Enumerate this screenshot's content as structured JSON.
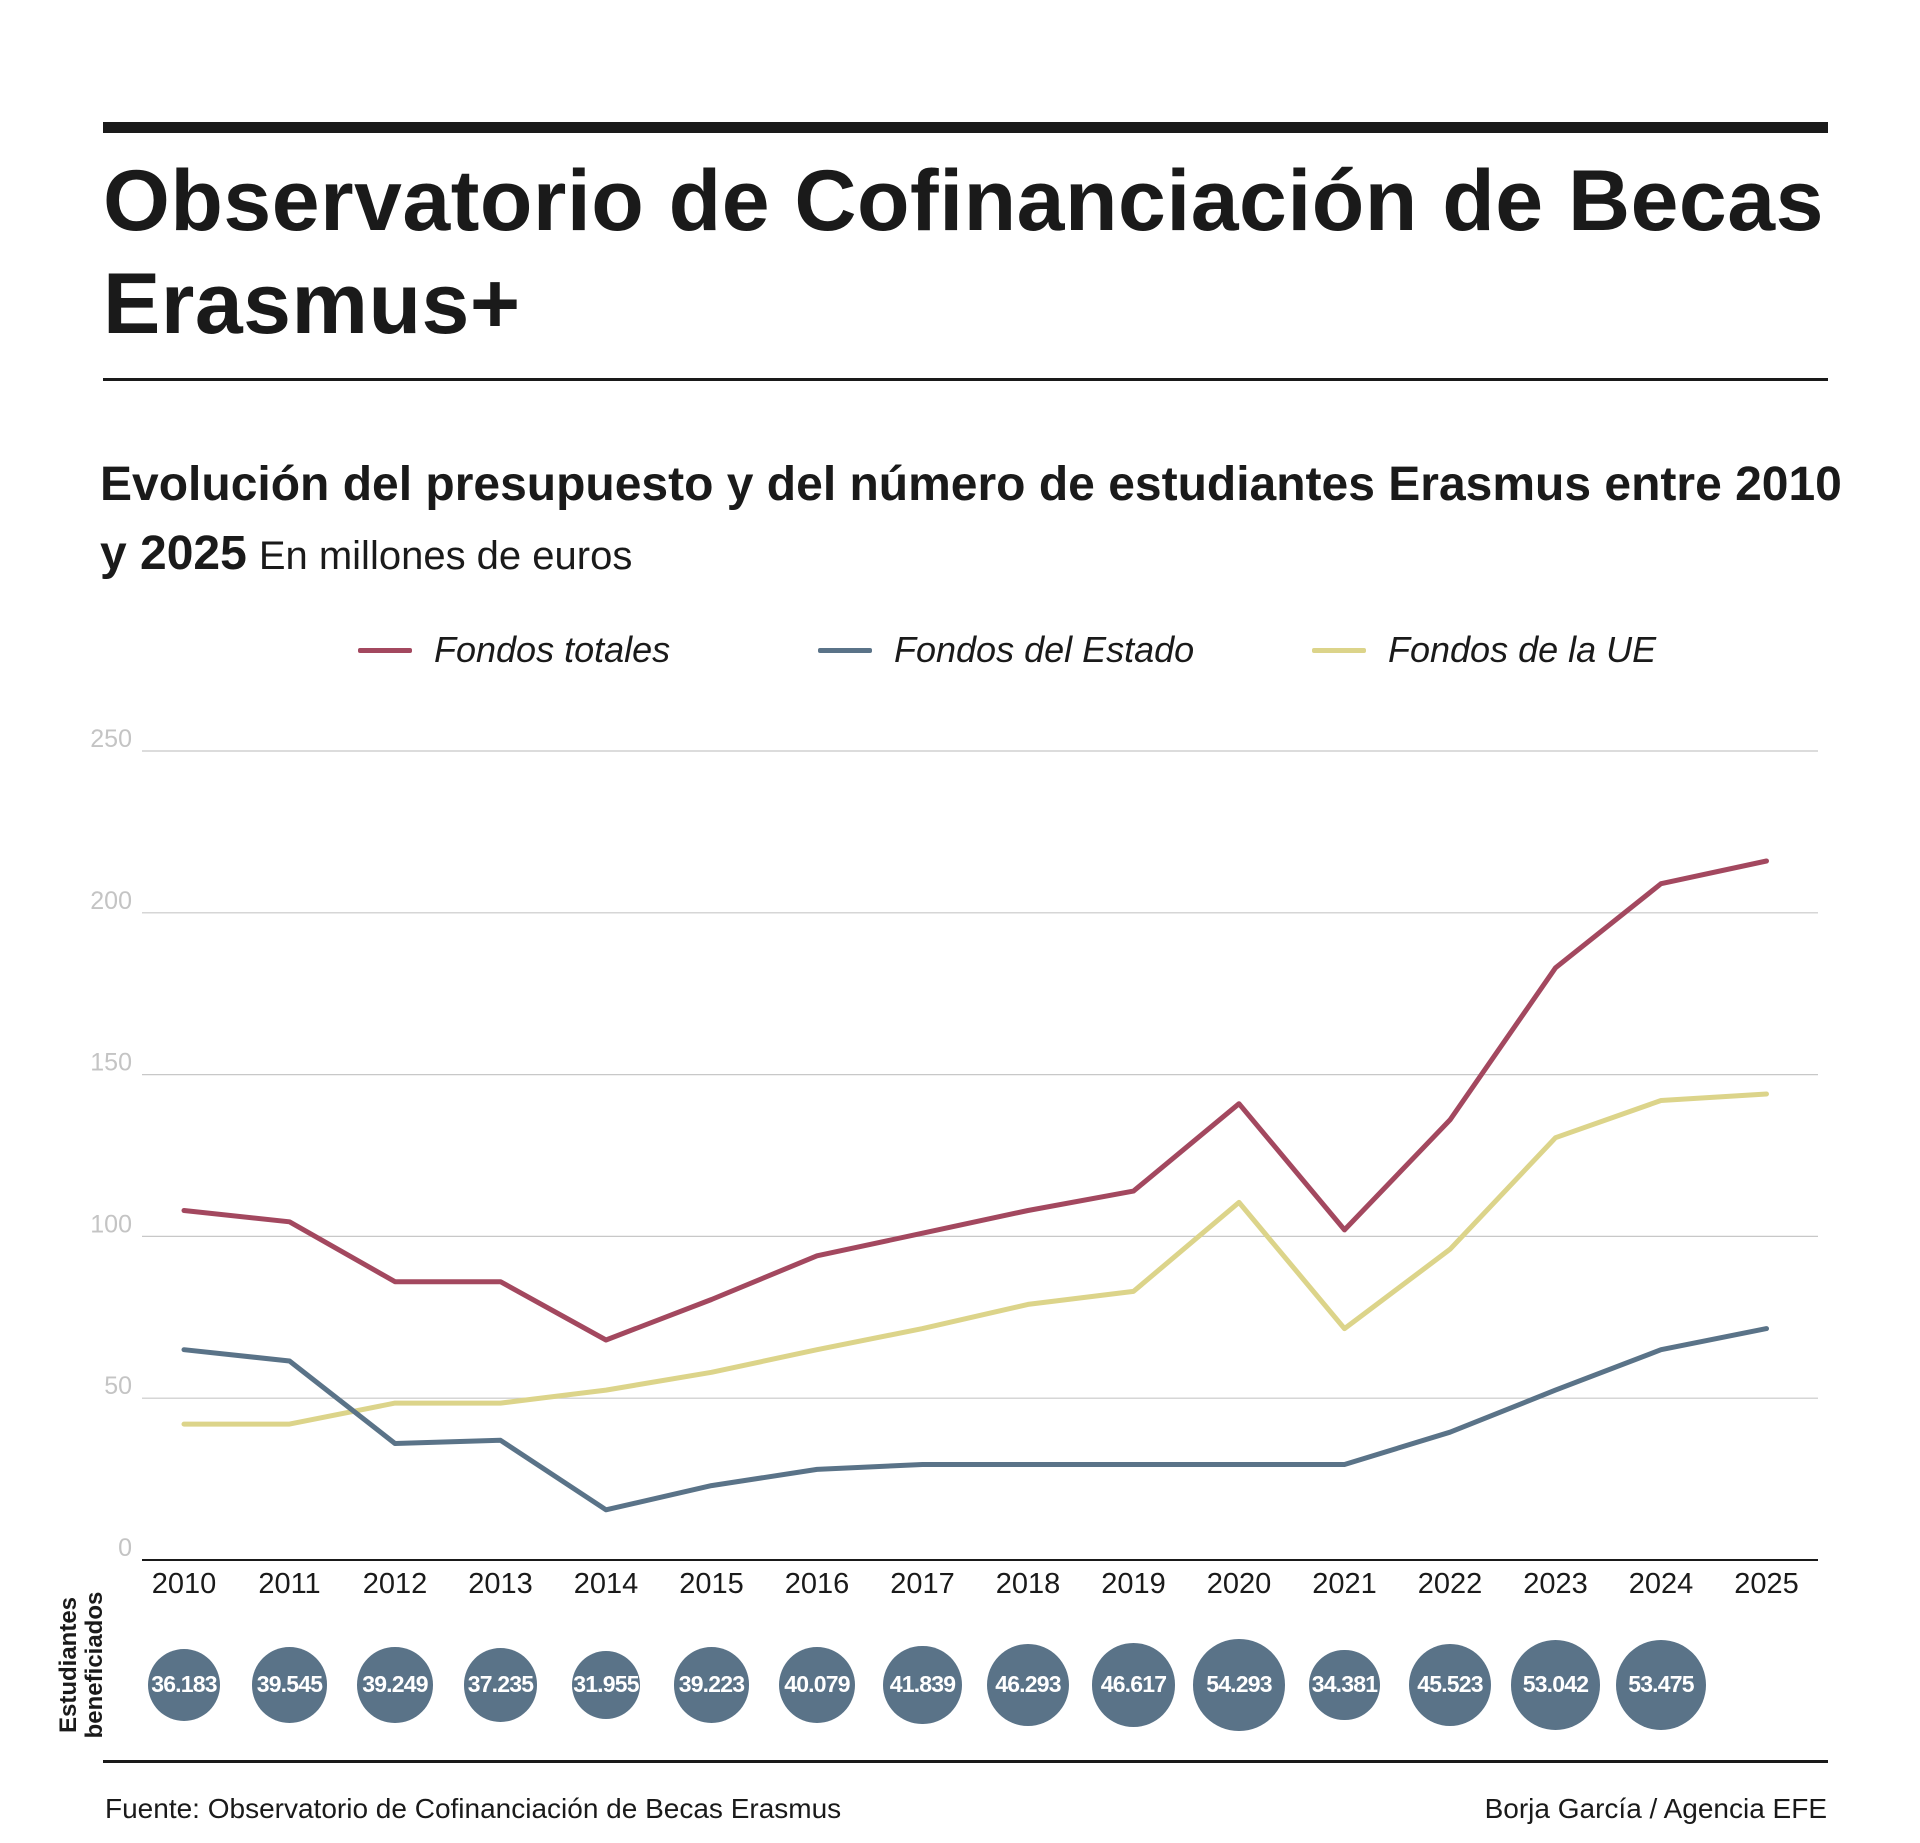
{
  "header": {
    "title": "Observatorio de Cofinanciación de Becas Erasmus+",
    "subtitle": "Evolución del presupuesto y del número de estudiantes Erasmus entre 2010 y 2025",
    "unit": "En millones de euros"
  },
  "legend": [
    {
      "label": "Fondos totales",
      "color": "#a3485f"
    },
    {
      "label": "Fondos del Estado",
      "color": "#5a7388"
    },
    {
      "label": "Fondos de la UE",
      "color": "#dcd48a"
    }
  ],
  "chart_data": {
    "type": "line",
    "title": "Evolución del presupuesto y del número de estudiantes Erasmus entre 2010 y 2025",
    "ylabel": "En millones de euros",
    "xlabel": "",
    "ylim": [
      0,
      250
    ],
    "yticks": [
      0,
      50,
      100,
      150,
      200,
      250
    ],
    "grid": true,
    "legend_position": "top",
    "categories": [
      "2010",
      "2011",
      "2012",
      "2013",
      "2014",
      "2015",
      "2016",
      "2017",
      "2018",
      "2019",
      "2020",
      "2021",
      "2022",
      "2023",
      "2024",
      "2025"
    ],
    "series": [
      {
        "name": "Fondos totales",
        "color": "#a3485f",
        "values": [
          108,
          104.5,
          86,
          86,
          68,
          80.5,
          94,
          101,
          108,
          114,
          141,
          102,
          136,
          183,
          209,
          216
        ]
      },
      {
        "name": "Fondos del Estado",
        "color": "#5a7388",
        "values": [
          65,
          61.5,
          36,
          37,
          15.5,
          23,
          28,
          29.5,
          29.5,
          29.5,
          29.5,
          29.5,
          39.5,
          52.5,
          65,
          71.5
        ]
      },
      {
        "name": "Fondos de la UE",
        "color": "#dcd48a",
        "values": [
          42,
          42,
          48.5,
          48.5,
          52.5,
          58,
          65,
          71.5,
          79,
          83,
          110.5,
          71.5,
          96,
          130.5,
          142,
          144
        ]
      }
    ]
  },
  "students": {
    "label_line1": "Estudiantes",
    "label_line2": "beneficiados",
    "years": [
      "2010",
      "2011",
      "2012",
      "2013",
      "2014",
      "2015",
      "2016",
      "2017",
      "2018",
      "2019",
      "2020",
      "2021",
      "2022",
      "2023",
      "2024"
    ],
    "values": [
      36183,
      39545,
      39249,
      37235,
      31955,
      39223,
      40079,
      41839,
      46293,
      46617,
      54293,
      34381,
      45523,
      53042,
      53475
    ],
    "labels": [
      "36.183",
      "39.545",
      "39.249",
      "37.235",
      "31.955",
      "39.223",
      "40.079",
      "41.839",
      "46.293",
      "46.617",
      "54.293",
      "34.381",
      "45.523",
      "53.042",
      "53.475"
    ],
    "color": "#5a7388"
  },
  "footer": {
    "source": "Fuente: Observatorio de Cofinanciación de Becas Erasmus",
    "credit": "Borja García / Agencia EFE"
  }
}
